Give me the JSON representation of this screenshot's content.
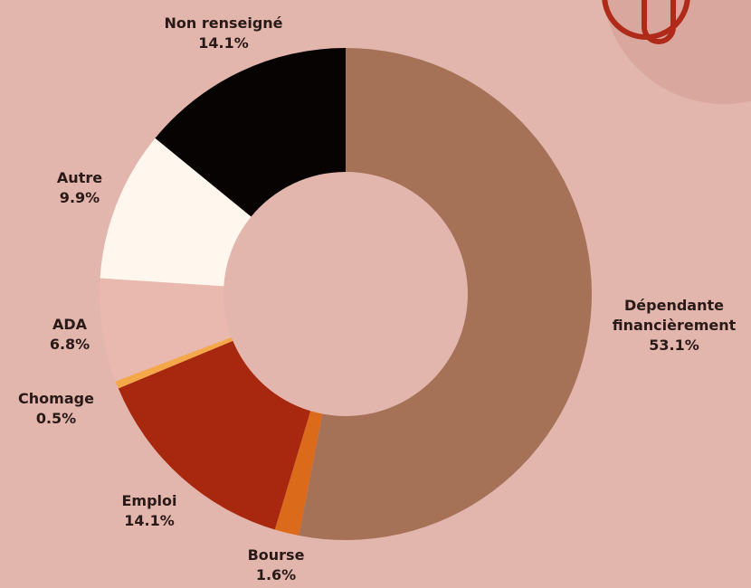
{
  "chart_data": {
    "type": "pie",
    "donut": true,
    "categories": [
      "Dépendante financièrement",
      "Bourse",
      "Emploi",
      "Chomage",
      "ADA",
      "Autre",
      "Non renseigné"
    ],
    "values": [
      53.1,
      1.6,
      14.1,
      0.5,
      6.8,
      9.9,
      14.1
    ],
    "value_labels": [
      "53.1%",
      "1.6%",
      "14.1%",
      "0.5%",
      "6.8%",
      "9.9%",
      "14.1%"
    ],
    "colors": [
      "#a57257",
      "#db6a1a",
      "#a8280f",
      "#f5a84a",
      "#e9b8ae",
      "#fff6ee",
      "#070302"
    ]
  }
}
